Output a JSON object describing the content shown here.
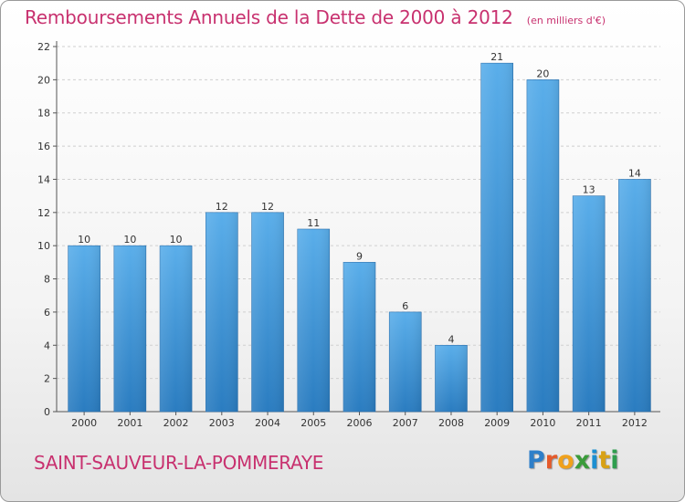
{
  "title": "Remboursements Annuels de la Dette de 2000 à 2012",
  "unit": "(en milliers d'€)",
  "commune": "SAINT-SAUVEUR-LA-POMMERAYE",
  "logo": {
    "p": "P",
    "r": "r",
    "o": "o",
    "x": "x",
    "i1": "i",
    "t": "t",
    "i2": "i"
  },
  "colors": {
    "accent": "#c8316f",
    "bar_top": "#5aaeea",
    "bar_bottom": "#2a7cc0"
  },
  "chart_data": {
    "type": "bar",
    "categories": [
      "2000",
      "2001",
      "2002",
      "2003",
      "2004",
      "2005",
      "2006",
      "2007",
      "2008",
      "2009",
      "2010",
      "2011",
      "2012"
    ],
    "values": [
      10,
      10,
      10,
      12,
      12,
      11,
      9,
      6,
      4,
      21,
      20,
      13,
      14
    ],
    "ylim": [
      0,
      22
    ],
    "yticks": [
      0,
      2,
      4,
      6,
      8,
      10,
      12,
      14,
      16,
      18,
      20,
      22
    ],
    "grid": true
  }
}
